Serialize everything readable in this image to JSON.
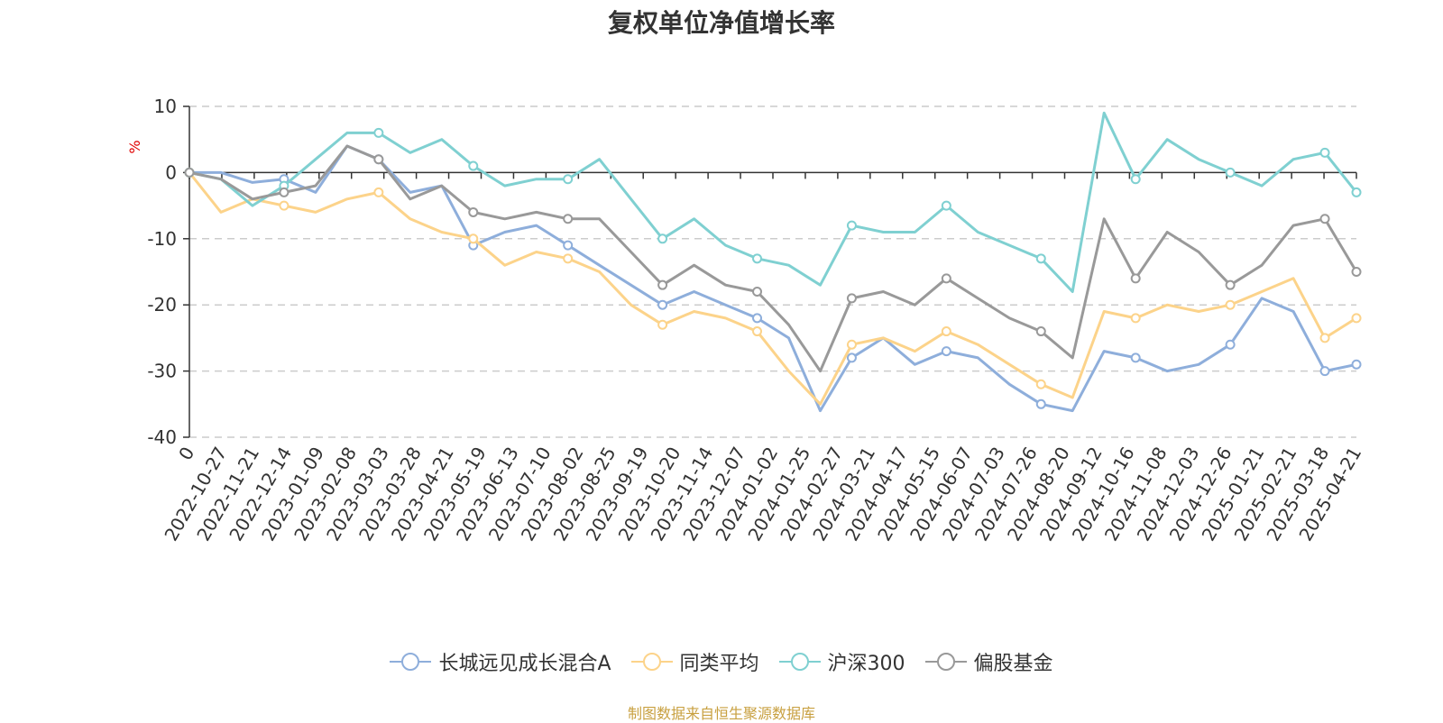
{
  "chart_data": {
    "type": "line",
    "title": "复权单位净值增长率",
    "ylabel": "%",
    "ylim": [
      -40,
      10
    ],
    "yticks": [
      10,
      0,
      -10,
      -20,
      -30,
      -40
    ],
    "xticks": [
      "0",
      "2022-10-27",
      "2022-11-21",
      "2022-12-14",
      "2023-01-09",
      "2023-02-08",
      "2023-03-03",
      "2023-03-28",
      "2023-04-21",
      "2023-05-19",
      "2023-06-13",
      "2023-07-10",
      "2023-08-02",
      "2023-08-25",
      "2023-09-19",
      "2023-10-20",
      "2023-11-14",
      "2023-12-07",
      "2024-01-02",
      "2024-01-25",
      "2024-02-27",
      "2024-03-21",
      "2024-04-17",
      "2024-05-15",
      "2024-06-07",
      "2024-07-03",
      "2024-07-26",
      "2024-08-20",
      "2024-09-12",
      "2024-10-16",
      "2024-11-08",
      "2024-12-03",
      "2024-12-26",
      "2025-01-21",
      "2025-02-21",
      "2025-03-18",
      "2025-04-21"
    ],
    "grid": "horizontal-dashed",
    "legend_position": "bottom",
    "series": [
      {
        "name": "长城远见成长混合A",
        "color": "#8eaedb",
        "values": [
          0,
          0,
          -1.5,
          -1,
          -3,
          4,
          2,
          -3,
          -2,
          -11,
          -9,
          -8,
          -11,
          -14,
          -17,
          -20,
          -18,
          -20,
          -22,
          -25,
          -36,
          -28,
          -25,
          -29,
          -27,
          -28,
          -32,
          -35,
          -36,
          -27,
          -28,
          -30,
          -29,
          -26,
          -19,
          -21,
          -30,
          -29
        ]
      },
      {
        "name": "同类平均",
        "color": "#fcd38a",
        "values": [
          0,
          -6,
          -4,
          -5,
          -6,
          -4,
          -3,
          -7,
          -9,
          -10,
          -14,
          -12,
          -13,
          -15,
          -20,
          -23,
          -21,
          -22,
          -24,
          -30,
          -35,
          -26,
          -25,
          -27,
          -24,
          -26,
          -29,
          -32,
          -34,
          -21,
          -22,
          -20,
          -21,
          -20,
          -18,
          -16,
          -25,
          -22
        ]
      },
      {
        "name": "沪深300",
        "color": "#7fd0d1",
        "values": [
          0,
          -1,
          -5,
          -2,
          2,
          6,
          6,
          3,
          5,
          1,
          -2,
          -1,
          -1,
          2,
          -4,
          -10,
          -7,
          -11,
          -13,
          -14,
          -17,
          -8,
          -9,
          -9,
          -5,
          -9,
          -11,
          -13,
          -18,
          9,
          -1,
          5,
          2,
          0,
          -2,
          2,
          3,
          -3
        ]
      },
      {
        "name": "偏股基金",
        "color": "#999999",
        "values": [
          0,
          -1,
          -4,
          -3,
          -2,
          4,
          2,
          -4,
          -2,
          -6,
          -7,
          -6,
          -7,
          -7,
          -12,
          -17,
          -14,
          -17,
          -18,
          -23,
          -30,
          -19,
          -18,
          -20,
          -16,
          -19,
          -22,
          -24,
          -28,
          -7,
          -16,
          -9,
          -12,
          -17,
          -14,
          -8,
          -7,
          -15
        ]
      }
    ]
  },
  "source_note": "制图数据来自恒生聚源数据库"
}
